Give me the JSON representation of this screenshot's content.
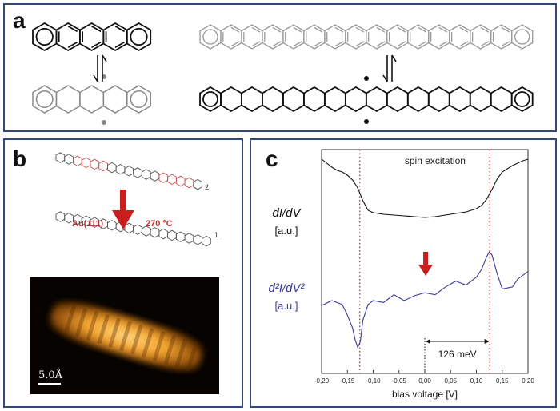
{
  "panels": {
    "a": {
      "label": "a"
    },
    "b": {
      "label": "b",
      "substrate": "Au(111)",
      "temperature": "270 °C",
      "product_number_top": "2",
      "product_number_bottom": "1",
      "scale_bar": "5.0Å"
    },
    "c": {
      "label": "c"
    }
  },
  "chart_data": {
    "type": "line",
    "annotation_top": "spin excitation",
    "annotation_energy": "126 meV",
    "xlabel": "bias voltage [V]",
    "xlim": [
      -0.2,
      0.2
    ],
    "xticks": [
      "-0,20",
      "-0,15",
      "-0,10",
      "-0,05",
      "0,00",
      "0,05",
      "0,10",
      "0,15",
      "0,20"
    ],
    "xtick_values": [
      -0.2,
      -0.15,
      -0.1,
      -0.05,
      0,
      0.05,
      0.1,
      0.15,
      0.2
    ],
    "vlines": [
      -0.126,
      0.126
    ],
    "series": [
      {
        "name": "dI/dV",
        "unit": "[a.u.]",
        "color": "#111111",
        "x": [
          -0.2,
          -0.19,
          -0.18,
          -0.17,
          -0.16,
          -0.15,
          -0.14,
          -0.13,
          -0.12,
          -0.11,
          -0.1,
          -0.08,
          -0.06,
          -0.04,
          -0.02,
          0,
          0.02,
          0.04,
          0.06,
          0.08,
          0.1,
          0.11,
          0.12,
          0.13,
          0.14,
          0.15,
          0.16,
          0.17,
          0.18,
          0.19,
          0.2
        ],
        "y": [
          1.0,
          0.95,
          0.9,
          0.86,
          0.84,
          0.8,
          0.74,
          0.64,
          0.48,
          0.36,
          0.33,
          0.31,
          0.3,
          0.29,
          0.28,
          0.27,
          0.28,
          0.3,
          0.32,
          0.34,
          0.38,
          0.42,
          0.5,
          0.62,
          0.75,
          0.84,
          0.88,
          0.92,
          0.95,
          0.98,
          1.0
        ]
      },
      {
        "name": "d²I/dV²",
        "unit": "[a.u.]",
        "color": "#3a3a9a",
        "x": [
          -0.2,
          -0.18,
          -0.16,
          -0.15,
          -0.14,
          -0.135,
          -0.13,
          -0.125,
          -0.12,
          -0.11,
          -0.1,
          -0.08,
          -0.06,
          -0.04,
          -0.02,
          0,
          0.02,
          0.04,
          0.06,
          0.08,
          0.1,
          0.11,
          0.12,
          0.125,
          0.13,
          0.14,
          0.15,
          0.17,
          0.18,
          0.2
        ],
        "y": [
          0.45,
          0.5,
          0.46,
          0.35,
          0.22,
          0.1,
          0.02,
          0.08,
          0.3,
          0.46,
          0.5,
          0.48,
          0.56,
          0.5,
          0.55,
          0.58,
          0.56,
          0.64,
          0.7,
          0.66,
          0.74,
          0.82,
          0.95,
          1.0,
          0.97,
          0.78,
          0.62,
          0.64,
          0.72,
          0.8
        ]
      }
    ]
  }
}
